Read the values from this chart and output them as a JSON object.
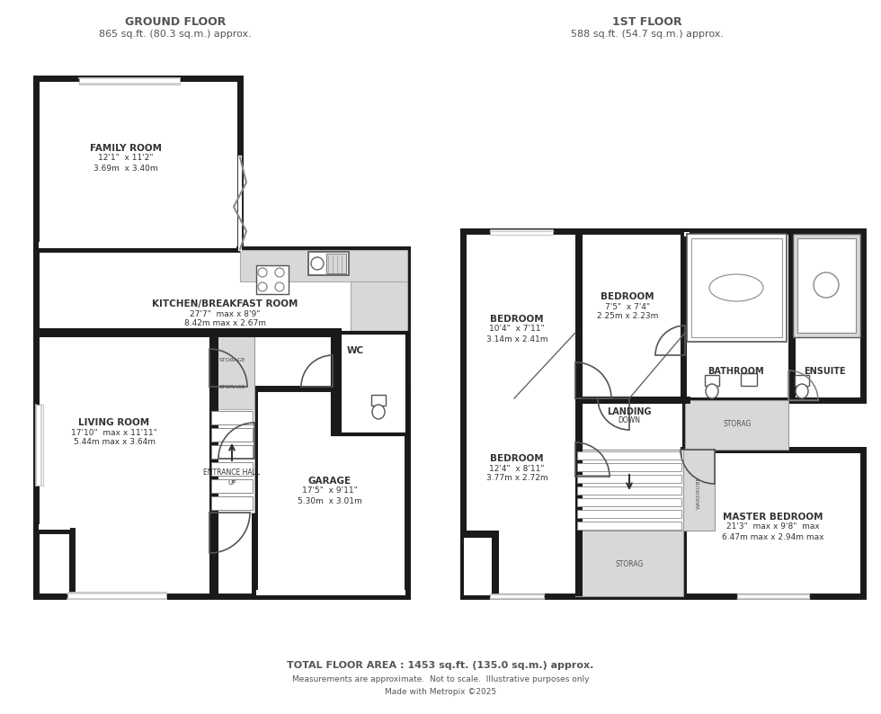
{
  "bg_color": "#ffffff",
  "wall_color": "#1a1a1a",
  "light_gray": "#d8d8d8",
  "title_color": "#555555",
  "label_color": "#333333",
  "ground_floor_title": "GROUND FLOOR",
  "ground_floor_area": "865 sq.ft. (80.3 sq.m.) approx.",
  "first_floor_title": "1ST FLOOR",
  "first_floor_area": "588 sq.ft. (54.7 sq.m.) approx.",
  "total_area": "TOTAL FLOOR AREA : 1453 sq.ft. (135.0 sq.m.) approx.",
  "footer1": "Measurements are approximate.  Not to scale.  Illustrative purposes only",
  "footer2": "Made with Metropix ©2025",
  "gf_family_room": [
    "FAMILY ROOM",
    "12'1\"  x 11'2\"",
    "3.69m  x 3.40m"
  ],
  "gf_kitchen": [
    "KITCHEN/BREAKFAST ROOM",
    "27'7\"  max x 8'9\"",
    "8.42m max x 2.67m"
  ],
  "gf_living": [
    "LIVING ROOM",
    "17'10\"  max x 11'11\"",
    "5.44m max x 3.64m"
  ],
  "gf_wc": "WC",
  "gf_garage": [
    "GARAGE",
    "17'5\"  x 9'11\"",
    "5.30m  x 3.01m"
  ],
  "gf_entrance": [
    "ENTRANCE HALL",
    "UP"
  ],
  "ff_bed1": [
    "BEDROOM",
    "10'4\"  x 7'11\"",
    "3.14m x 2.41m"
  ],
  "ff_bed2": [
    "BEDROOM",
    "7'5\"  x 7'4\"",
    "2.25m x 2.23m"
  ],
  "ff_bed3": [
    "BEDROOM",
    "12'4\"  x 8'11\"",
    "3.77m x 2.72m"
  ],
  "ff_master": [
    "MASTER BEDROOM",
    "21'3\"  max x 9'8\"  max",
    "6.47m max x 2.94m max"
  ],
  "ff_landing": [
    "LANDING",
    "DOWN"
  ],
  "ff_bathroom": "BATHROOM",
  "ff_ensuite": "ENSUITE",
  "ff_storage": "STORAG",
  "ff_wardrobe": "WARDROBE"
}
